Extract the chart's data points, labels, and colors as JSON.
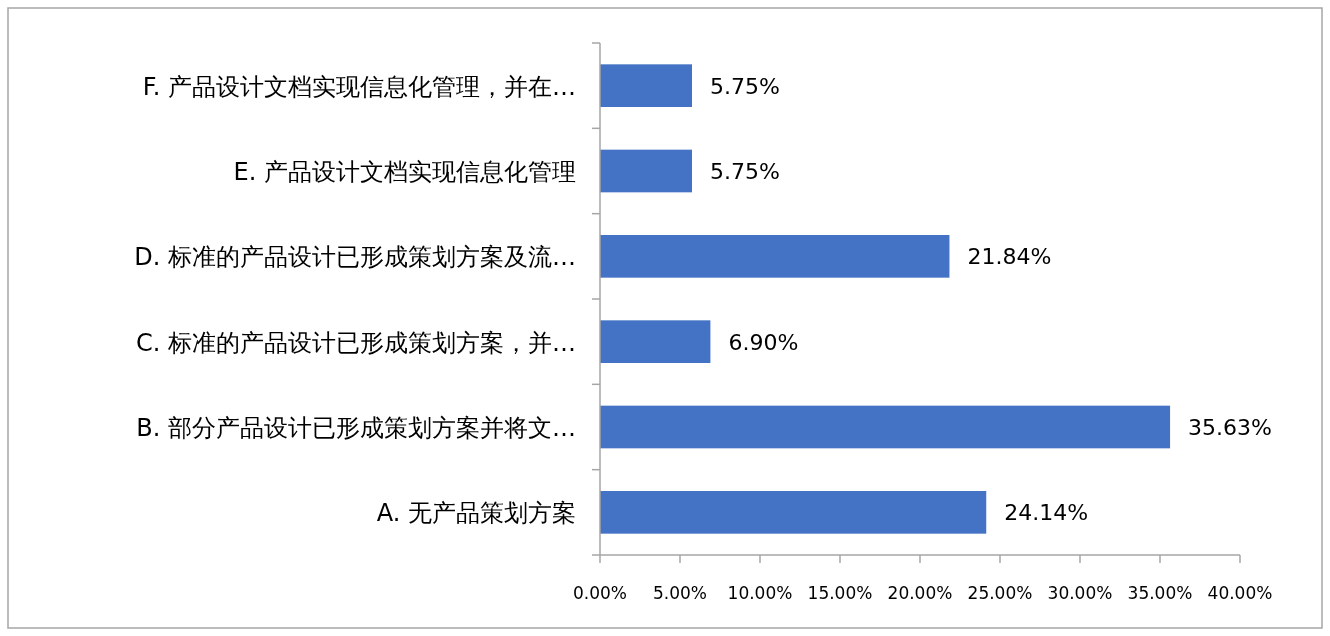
{
  "chart_data": {
    "type": "bar",
    "orientation": "horizontal",
    "categories": [
      "F. 产品设计文档实现信息化管理，并在…",
      "E. 产品设计文档实现信息化管理",
      "D. 标准的产品设计已形成策划方案及流…",
      "C. 标准的产品设计已形成策划方案，并…",
      "B. 部分产品设计已形成策划方案并将文…",
      "A. 无产品策划方案"
    ],
    "values": [
      5.75,
      5.75,
      21.84,
      6.9,
      35.63,
      24.14
    ],
    "value_labels": [
      "5.75%",
      "5.75%",
      "21.84%",
      "6.90%",
      "35.63%",
      "24.14%"
    ],
    "color": "#4472c4",
    "xlim": [
      0,
      40
    ],
    "xticks": [
      {
        "value": 0,
        "label": "0.00%"
      },
      {
        "value": 5,
        "label": "5.00%"
      },
      {
        "value": 10,
        "label": "10.00%"
      },
      {
        "value": 15,
        "label": "15.00%"
      },
      {
        "value": 20,
        "label": "20.00%"
      },
      {
        "value": 25,
        "label": "25.00%"
      },
      {
        "value": 30,
        "label": "30.00%"
      },
      {
        "value": 35,
        "label": "35.00%"
      },
      {
        "value": 40,
        "label": "40.00%"
      }
    ],
    "grid": false
  }
}
